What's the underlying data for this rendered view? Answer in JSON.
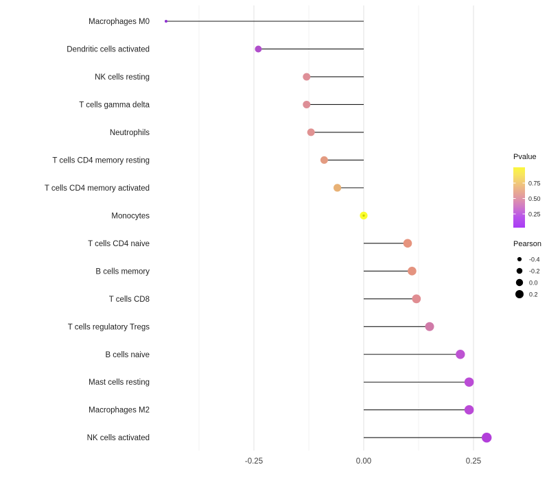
{
  "chart_data": {
    "type": "scatter",
    "variant": "horizontal-lollipop",
    "title": "",
    "xlabel": "",
    "ylabel": "",
    "xlim": [
      -0.5,
      0.33
    ],
    "grid": "vertical-only",
    "background": "#ffffff",
    "x_ticks": {
      "values": [
        -0.25,
        0.0,
        0.25
      ],
      "labels": [
        "-0.25",
        "0.00",
        "0.25"
      ]
    },
    "x_minor_gridlines": [
      -0.375,
      -0.125,
      0.125
    ],
    "categories": [
      "Macrophages M0",
      "Dendritic cells activated",
      "NK cells resting",
      "T cells gamma delta",
      "Neutrophils",
      "T cells CD4 memory resting",
      "T cells CD4 memory activated",
      "Monocytes",
      "T cells CD4 naive",
      "B cells memory",
      "T cells CD8",
      "T cells regulatory  Tregs",
      "B cells naive",
      "Mast cells resting",
      "Macrophages M2",
      "NK cells activated"
    ],
    "series": [
      {
        "name": "Pearson correlation (x position, dot size) colored by Pvalue",
        "points": [
          {
            "category": "Macrophages M0",
            "pearson": -0.45,
            "pvalue_est": 0.08,
            "color": "#8d2fd0",
            "radius": 2.0
          },
          {
            "category": "Dendritic cells activated",
            "pearson": -0.24,
            "pvalue_est": 0.3,
            "color": "#b04ecb",
            "radius": 5.0
          },
          {
            "category": "NK cells resting",
            "pearson": -0.13,
            "pvalue_est": 0.52,
            "color": "#de8f98",
            "radius": 5.5
          },
          {
            "category": "T cells gamma delta",
            "pearson": -0.13,
            "pvalue_est": 0.52,
            "color": "#dd8e96",
            "radius": 5.5
          },
          {
            "category": "Neutrophils",
            "pearson": -0.12,
            "pvalue_est": 0.5,
            "color": "#e09292",
            "radius": 5.5
          },
          {
            "category": "T cells CD4 memory resting",
            "pearson": -0.09,
            "pvalue_est": 0.58,
            "color": "#e39b81",
            "radius": 5.5
          },
          {
            "category": "T cells CD4 memory activated",
            "pearson": -0.06,
            "pvalue_est": 0.7,
            "color": "#e8b175",
            "radius": 5.6
          },
          {
            "category": "Monocytes",
            "pearson": 0.0,
            "pvalue_est": 0.98,
            "color": "#fafd2d",
            "radius": 5.6,
            "inner_dot_color": "#c9cc00"
          },
          {
            "category": "T cells CD4 naive",
            "pearson": 0.1,
            "pvalue_est": 0.57,
            "color": "#e6947e",
            "radius": 6.3
          },
          {
            "category": "B cells memory",
            "pearson": 0.11,
            "pvalue_est": 0.57,
            "color": "#e4937f",
            "radius": 6.3
          },
          {
            "category": "T cells CD8",
            "pearson": 0.12,
            "pvalue_est": 0.52,
            "color": "#e08d92",
            "radius": 6.4
          },
          {
            "category": "T cells regulatory  Tregs",
            "pearson": 0.15,
            "pvalue_est": 0.42,
            "color": "#d07aa8",
            "radius": 6.5
          },
          {
            "category": "B cells naive",
            "pearson": 0.22,
            "pvalue_est": 0.28,
            "color": "#bd53d2",
            "radius": 6.7
          },
          {
            "category": "Mast cells resting",
            "pearson": 0.24,
            "pvalue_est": 0.26,
            "color": "#bb4cd6",
            "radius": 6.8
          },
          {
            "category": "Macrophages M2",
            "pearson": 0.24,
            "pvalue_est": 0.25,
            "color": "#ba4ad7",
            "radius": 6.8
          },
          {
            "category": "NK cells activated",
            "pearson": 0.28,
            "pvalue_est": 0.2,
            "color": "#b23fda",
            "radius": 7.2
          }
        ]
      }
    ],
    "legends": {
      "pvalue": {
        "title": "Pvalue",
        "tick_labels": [
          "0.75",
          "0.50",
          "0.25"
        ],
        "position": "right",
        "gradient_top_to_bottom": [
          {
            "offset": "0%",
            "color": "#fbf73e"
          },
          {
            "offset": "12%",
            "color": "#f8e55e"
          },
          {
            "offset": "28%",
            "color": "#f0c47c"
          },
          {
            "offset": "42%",
            "color": "#e7a694"
          },
          {
            "offset": "55%",
            "color": "#dc8fae"
          },
          {
            "offset": "68%",
            "color": "#cc74cd"
          },
          {
            "offset": "82%",
            "color": "#b855ea"
          },
          {
            "offset": "100%",
            "color": "#a93cf5"
          }
        ]
      },
      "pearson": {
        "title": "Pearson",
        "position": "right",
        "entries": [
          {
            "label": "-0.4",
            "radius": 3.1
          },
          {
            "label": "-0.2",
            "radius": 4.3
          },
          {
            "label": "0.0",
            "radius": 5.2
          },
          {
            "label": "0.2",
            "radius": 6.0
          }
        ],
        "dot_color": "#000000"
      }
    },
    "style": {
      "stem_color": "#1a1a1a",
      "major_grid_color": "#e7e7e7",
      "minor_grid_color": "#f2f2f2",
      "axis_text_color": "#404040",
      "category_text_color": "#1f1f1f"
    }
  }
}
